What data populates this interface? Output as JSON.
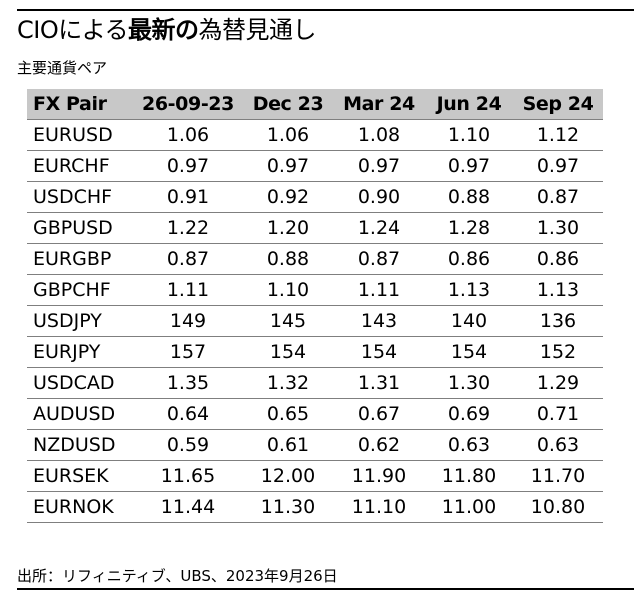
{
  "title": {
    "prefix": "CIOによる",
    "bold": "最新の",
    "suffix": "為替見通し"
  },
  "subtitle": "主要通貨ペア",
  "table": {
    "columns": [
      "FX Pair",
      "26-09-23",
      "Dec 23",
      "Mar 24",
      "Jun 24",
      "Sep 24"
    ],
    "rows": [
      [
        "EURUSD",
        "1.06",
        "1.06",
        "1.08",
        "1.10",
        "1.12"
      ],
      [
        "EURCHF",
        "0.97",
        "0.97",
        "0.97",
        "0.97",
        "0.97"
      ],
      [
        "USDCHF",
        "0.91",
        "0.92",
        "0.90",
        "0.88",
        "0.87"
      ],
      [
        "GBPUSD",
        "1.22",
        "1.20",
        "1.24",
        "1.28",
        "1.30"
      ],
      [
        "EURGBP",
        "0.87",
        "0.88",
        "0.87",
        "0.86",
        "0.86"
      ],
      [
        "GBPCHF",
        "1.11",
        "1.10",
        "1.11",
        "1.13",
        "1.13"
      ],
      [
        "USDJPY",
        "149",
        "145",
        "143",
        "140",
        "136"
      ],
      [
        "EURJPY",
        "157",
        "154",
        "154",
        "154",
        "152"
      ],
      [
        "USDCAD",
        "1.35",
        "1.32",
        "1.31",
        "1.30",
        "1.29"
      ],
      [
        "AUDUSD",
        "0.64",
        "0.65",
        "0.67",
        "0.69",
        "0.71"
      ],
      [
        "NZDUSD",
        "0.59",
        "0.61",
        "0.62",
        "0.63",
        "0.63"
      ],
      [
        "EURSEK",
        "11.65",
        "12.00",
        "11.90",
        "11.80",
        "11.70"
      ],
      [
        "EURNOK",
        "11.44",
        "11.30",
        "11.10",
        "11.00",
        "10.80"
      ]
    ]
  },
  "source": "出所：リフィニティブ、UBS、2023年9月26日",
  "colors": {
    "header_bg": "#c8c8c8",
    "row_rule": "#7f7f7f",
    "text": "#000000"
  }
}
